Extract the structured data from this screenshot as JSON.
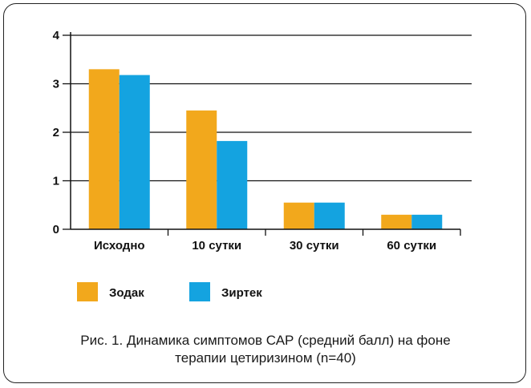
{
  "chart_data": {
    "type": "bar",
    "categories": [
      "Исходно",
      "10 сутки",
      "30 сутки",
      "60 сутки"
    ],
    "series": [
      {
        "name": "Зодак",
        "color": "#F2A81C",
        "values": [
          3.3,
          2.45,
          0.55,
          0.3
        ]
      },
      {
        "name": "Зиртек",
        "color": "#14A3E0",
        "values": [
          3.18,
          1.82,
          0.55,
          0.3
        ]
      }
    ],
    "yticks": [
      "0",
      "1",
      "2",
      "3",
      "4"
    ],
    "ylim": [
      0,
      4
    ],
    "grid": true,
    "legend": "bottom-left"
  },
  "caption": {
    "line1": "Рис. 1. Динамика симптомов САР (средний балл) на фоне",
    "line2": "терапии цетиризином (n=40)"
  }
}
